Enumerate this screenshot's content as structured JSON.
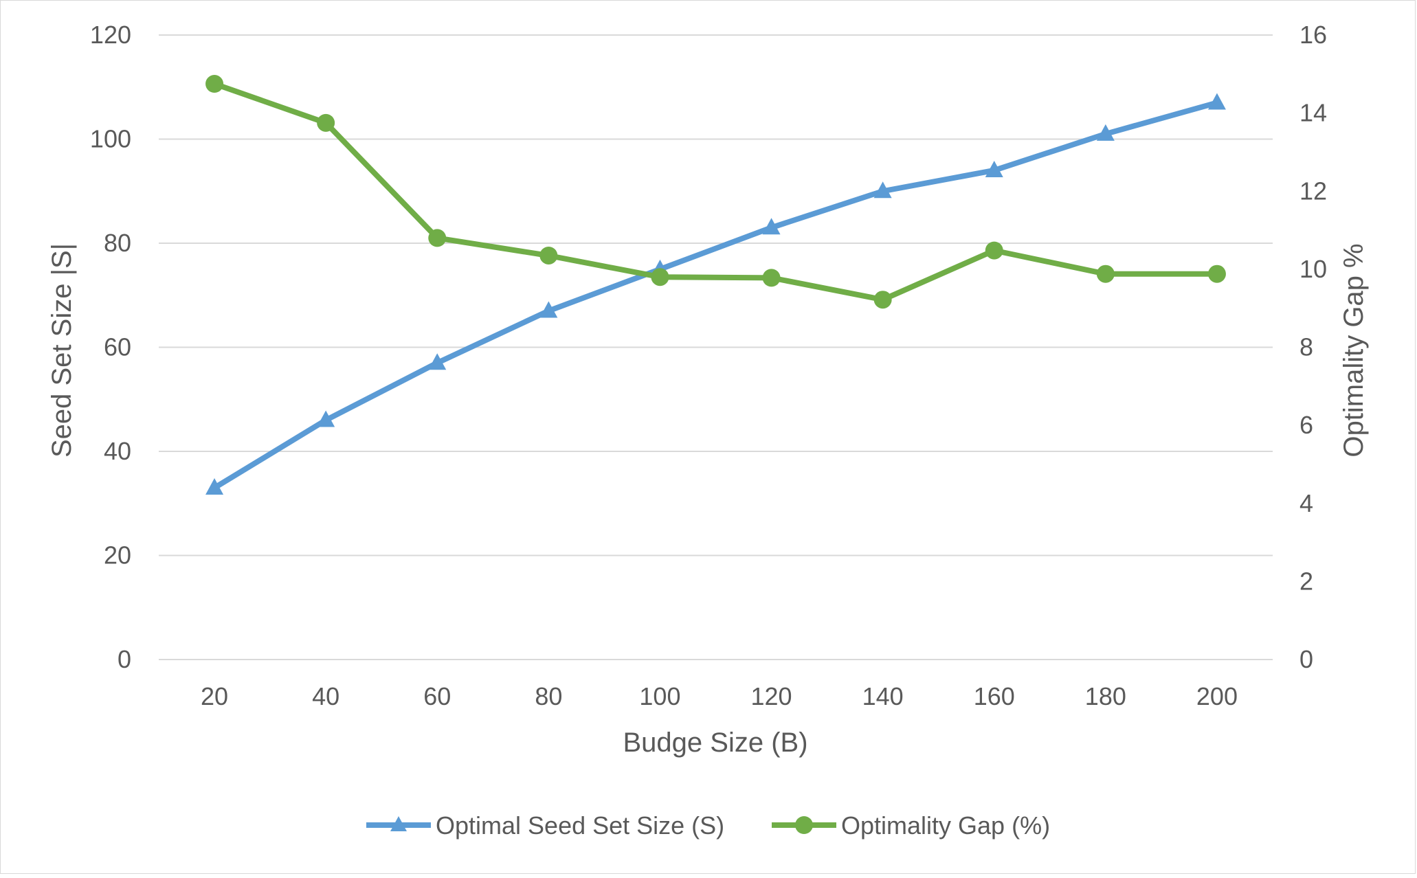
{
  "chart_data": {
    "type": "line",
    "title": "",
    "xlabel": "Budge Size (B)",
    "ylabel": "Seed Set Size |S|",
    "y2label": "Optimality Gap %",
    "categories": [
      "20",
      "40",
      "60",
      "80",
      "100",
      "120",
      "140",
      "160",
      "180",
      "200"
    ],
    "ylim": [
      0,
      120
    ],
    "y_ticks": [
      "0",
      "20",
      "40",
      "60",
      "80",
      "100",
      "120"
    ],
    "y2lim": [
      0,
      16
    ],
    "y2_ticks": [
      "0",
      "2",
      "4",
      "6",
      "8",
      "10",
      "12",
      "14",
      "16"
    ],
    "grid": true,
    "legend_position": "bottom",
    "series": [
      {
        "name": "Optimal Seed Set Size (S)",
        "axis": "left",
        "marker": "triangle",
        "color": "#5b9bd5",
        "values": [
          33,
          46,
          57,
          67,
          75,
          83,
          90,
          94,
          101,
          107
        ]
      },
      {
        "name": "Optimality Gap (%)",
        "axis": "right",
        "marker": "circle",
        "color": "#70ad47",
        "values": [
          14.75,
          13.75,
          10.8,
          10.35,
          9.8,
          9.78,
          9.22,
          10.48,
          9.88,
          9.88
        ]
      }
    ]
  }
}
